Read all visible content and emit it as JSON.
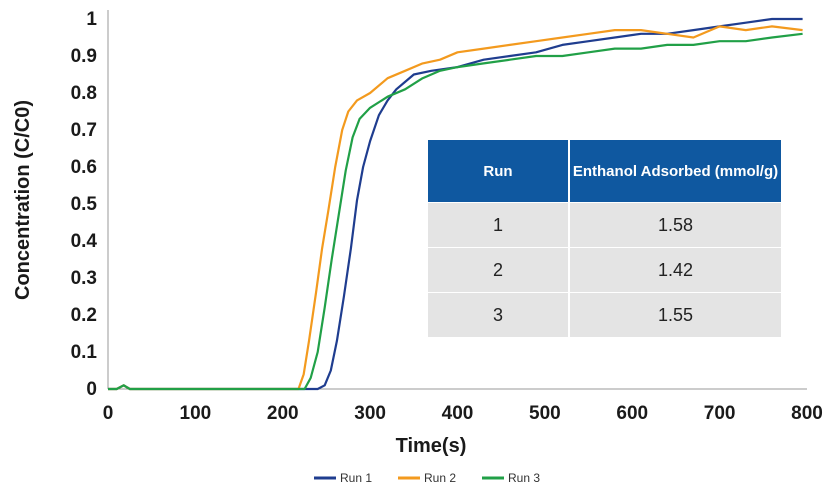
{
  "chart_data": {
    "type": "line",
    "xlabel": "Time(s)",
    "ylabel": "Concentration (C/C0)",
    "xlim": [
      0,
      800
    ],
    "ylim": [
      0,
      1
    ],
    "x_ticks": [
      "0",
      "100",
      "200",
      "300",
      "400",
      "500",
      "600",
      "700",
      "800"
    ],
    "y_ticks": [
      "0",
      "0.1",
      "0.2",
      "0.3",
      "0.4",
      "0.5",
      "0.6",
      "0.7",
      "0.8",
      "0.9",
      "1"
    ],
    "grid": false,
    "legend_position": "bottom",
    "series": [
      {
        "name": "Run 1",
        "color": "#1f3d8f",
        "points": [
          [
            0,
            0
          ],
          [
            10,
            0
          ],
          [
            18,
            0.01
          ],
          [
            25,
            0
          ],
          [
            100,
            0
          ],
          [
            200,
            0
          ],
          [
            240,
            0
          ],
          [
            248,
            0.01
          ],
          [
            255,
            0.05
          ],
          [
            262,
            0.13
          ],
          [
            270,
            0.25
          ],
          [
            278,
            0.38
          ],
          [
            285,
            0.51
          ],
          [
            292,
            0.6
          ],
          [
            300,
            0.67
          ],
          [
            310,
            0.74
          ],
          [
            320,
            0.78
          ],
          [
            330,
            0.81
          ],
          [
            340,
            0.83
          ],
          [
            350,
            0.85
          ],
          [
            370,
            0.86
          ],
          [
            400,
            0.87
          ],
          [
            430,
            0.89
          ],
          [
            460,
            0.9
          ],
          [
            490,
            0.91
          ],
          [
            520,
            0.93
          ],
          [
            550,
            0.94
          ],
          [
            580,
            0.95
          ],
          [
            610,
            0.96
          ],
          [
            640,
            0.96
          ],
          [
            670,
            0.97
          ],
          [
            700,
            0.98
          ],
          [
            730,
            0.99
          ],
          [
            760,
            1.0
          ],
          [
            780,
            1.0
          ],
          [
            795,
            1.0
          ]
        ]
      },
      {
        "name": "Run 2",
        "color": "#f39a1e",
        "points": [
          [
            0,
            0
          ],
          [
            10,
            0
          ],
          [
            18,
            0.01
          ],
          [
            25,
            0
          ],
          [
            100,
            0
          ],
          [
            200,
            0
          ],
          [
            218,
            0
          ],
          [
            224,
            0.04
          ],
          [
            230,
            0.13
          ],
          [
            238,
            0.26
          ],
          [
            245,
            0.38
          ],
          [
            252,
            0.48
          ],
          [
            260,
            0.6
          ],
          [
            268,
            0.7
          ],
          [
            275,
            0.75
          ],
          [
            285,
            0.78
          ],
          [
            300,
            0.8
          ],
          [
            320,
            0.84
          ],
          [
            340,
            0.86
          ],
          [
            360,
            0.88
          ],
          [
            380,
            0.89
          ],
          [
            400,
            0.91
          ],
          [
            430,
            0.92
          ],
          [
            460,
            0.93
          ],
          [
            490,
            0.94
          ],
          [
            520,
            0.95
          ],
          [
            550,
            0.96
          ],
          [
            580,
            0.97
          ],
          [
            610,
            0.97
          ],
          [
            640,
            0.96
          ],
          [
            670,
            0.95
          ],
          [
            700,
            0.98
          ],
          [
            730,
            0.97
          ],
          [
            760,
            0.98
          ],
          [
            795,
            0.97
          ]
        ]
      },
      {
        "name": "Run 3",
        "color": "#21a047",
        "points": [
          [
            0,
            0
          ],
          [
            10,
            0
          ],
          [
            18,
            0.01
          ],
          [
            25,
            0
          ],
          [
            100,
            0
          ],
          [
            200,
            0
          ],
          [
            225,
            0
          ],
          [
            232,
            0.03
          ],
          [
            240,
            0.1
          ],
          [
            248,
            0.22
          ],
          [
            256,
            0.35
          ],
          [
            264,
            0.47
          ],
          [
            272,
            0.59
          ],
          [
            280,
            0.68
          ],
          [
            288,
            0.73
          ],
          [
            300,
            0.76
          ],
          [
            320,
            0.79
          ],
          [
            340,
            0.81
          ],
          [
            360,
            0.84
          ],
          [
            380,
            0.86
          ],
          [
            400,
            0.87
          ],
          [
            430,
            0.88
          ],
          [
            460,
            0.89
          ],
          [
            490,
            0.9
          ],
          [
            520,
            0.9
          ],
          [
            550,
            0.91
          ],
          [
            580,
            0.92
          ],
          [
            610,
            0.92
          ],
          [
            640,
            0.93
          ],
          [
            670,
            0.93
          ],
          [
            700,
            0.94
          ],
          [
            730,
            0.94
          ],
          [
            760,
            0.95
          ],
          [
            795,
            0.96
          ]
        ]
      }
    ],
    "inset_table": {
      "headers": [
        "Run",
        "Enthanol Adsorbed (mmol/g)"
      ],
      "rows": [
        [
          "1",
          "1.58"
        ],
        [
          "2",
          "1.42"
        ],
        [
          "3",
          "1.55"
        ]
      ]
    }
  },
  "legend": [
    "Run 1",
    "Run 2",
    "Run 3"
  ]
}
